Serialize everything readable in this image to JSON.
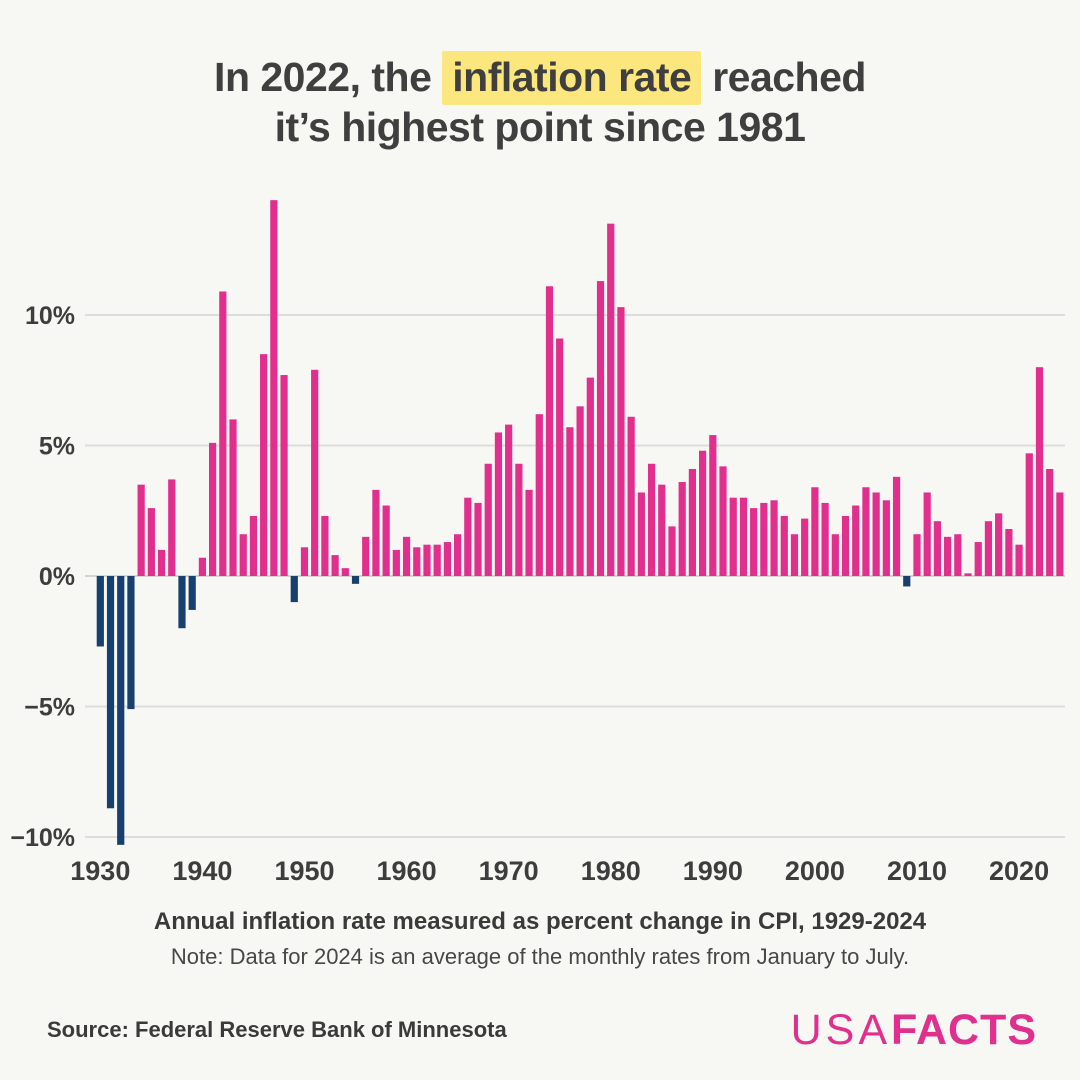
{
  "title": {
    "line1_pre": "In 2022, the ",
    "line1_highlight": "inflation rate",
    "line1_post": " reached",
    "line2": "it’s highest point since 1981"
  },
  "caption": {
    "subtitle": "Annual inflation rate measured as percent change in CPI, 1929-2024",
    "note": "Note: Data for 2024 is an average of the monthly rates from January to July."
  },
  "footer": {
    "source": "Source: Federal Reserve Bank of Minnesota",
    "logo_usa": "USA",
    "logo_facts": "FACTS"
  },
  "colors": {
    "positive_bar": "#e02f8c",
    "negative_bar": "#17406e",
    "gridline": "#dcdcdc",
    "zero_line": "#d3d3d3",
    "highlight": "#fbe77e",
    "text": "#3d3d3d",
    "background": "#f7f7f4"
  },
  "chart_data": {
    "type": "bar",
    "title": "Annual inflation rate, percent change in CPI, 1929-2024",
    "xlabel": "",
    "ylabel": "",
    "grid": true,
    "ylim": [
      -10.8,
      15
    ],
    "x": [
      1929,
      1930,
      1931,
      1932,
      1933,
      1934,
      1935,
      1936,
      1937,
      1938,
      1939,
      1940,
      1941,
      1942,
      1943,
      1944,
      1945,
      1946,
      1947,
      1948,
      1949,
      1950,
      1951,
      1952,
      1953,
      1954,
      1955,
      1956,
      1957,
      1958,
      1959,
      1960,
      1961,
      1962,
      1963,
      1964,
      1965,
      1966,
      1967,
      1968,
      1969,
      1970,
      1971,
      1972,
      1973,
      1974,
      1975,
      1976,
      1977,
      1978,
      1979,
      1980,
      1981,
      1982,
      1983,
      1984,
      1985,
      1986,
      1987,
      1988,
      1989,
      1990,
      1991,
      1992,
      1993,
      1994,
      1995,
      1996,
      1997,
      1998,
      1999,
      2000,
      2001,
      2002,
      2003,
      2004,
      2005,
      2006,
      2007,
      2008,
      2009,
      2010,
      2011,
      2012,
      2013,
      2014,
      2015,
      2016,
      2017,
      2018,
      2019,
      2020,
      2021,
      2022,
      2023,
      2024
    ],
    "values": [
      0.0,
      -2.7,
      -8.9,
      -10.3,
      -5.1,
      3.5,
      2.6,
      1.0,
      3.7,
      -2.0,
      -1.3,
      0.7,
      5.1,
      10.9,
      6.0,
      1.6,
      2.3,
      8.5,
      14.4,
      7.7,
      -1.0,
      1.1,
      7.9,
      2.3,
      0.8,
      0.3,
      -0.3,
      1.5,
      3.3,
      2.7,
      1.0,
      1.5,
      1.1,
      1.2,
      1.2,
      1.3,
      1.6,
      3.0,
      2.8,
      4.3,
      5.5,
      5.8,
      4.3,
      3.3,
      6.2,
      11.1,
      9.1,
      5.7,
      6.5,
      7.6,
      11.3,
      13.5,
      10.3,
      6.1,
      3.2,
      4.3,
      3.5,
      1.9,
      3.6,
      4.1,
      4.8,
      5.4,
      4.2,
      3.0,
      3.0,
      2.6,
      2.8,
      2.9,
      2.3,
      1.6,
      2.2,
      3.4,
      2.8,
      1.6,
      2.3,
      2.7,
      3.4,
      3.2,
      2.9,
      3.8,
      -0.4,
      1.6,
      3.2,
      2.1,
      1.5,
      1.6,
      0.1,
      1.3,
      2.1,
      2.4,
      1.8,
      1.2,
      4.7,
      8.0,
      4.1,
      3.2
    ],
    "y_ticks": [
      10,
      5,
      0,
      -5,
      -10
    ],
    "y_tick_labels": [
      "10%",
      "5%",
      "0%",
      "−5%",
      "−10%"
    ],
    "x_ticks": [
      1930,
      1940,
      1950,
      1960,
      1970,
      1980,
      1990,
      2000,
      2010,
      2020
    ],
    "legend": null
  }
}
